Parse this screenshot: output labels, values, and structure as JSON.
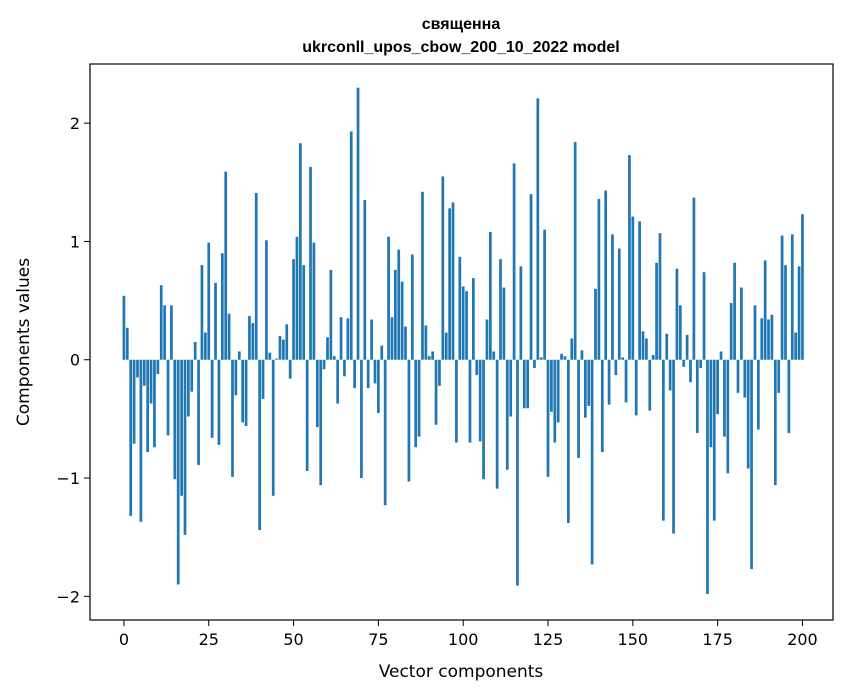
{
  "chart_data": {
    "type": "bar",
    "title_lines": [
      "священна",
      "ukrconll_upos_cbow_200_10_2022 model"
    ],
    "xlabel": "Vector components",
    "ylabel": "Components values",
    "xlim": [
      -10,
      209
    ],
    "ylim": [
      -2.2,
      2.5
    ],
    "xticks": [
      0,
      25,
      50,
      75,
      100,
      125,
      150,
      175,
      200
    ],
    "xtick_labels": [
      "0",
      "25",
      "50",
      "75",
      "100",
      "125",
      "150",
      "175",
      "200"
    ],
    "yticks": [
      -2,
      -1,
      0,
      1,
      2
    ],
    "ytick_labels": [
      "−2",
      "−1",
      "0",
      "1",
      "2"
    ],
    "bar_color": "#1f77b4",
    "grid": false,
    "values": [
      0.54,
      0.27,
      -1.32,
      -0.71,
      -0.15,
      -1.37,
      -0.22,
      -0.78,
      -0.37,
      -0.74,
      -0.12,
      0.63,
      0.46,
      -0.64,
      0.46,
      -1.01,
      -1.9,
      -1.15,
      -1.48,
      -0.48,
      -0.27,
      0.15,
      -0.89,
      0.8,
      0.23,
      0.99,
      -0.66,
      0.65,
      -0.72,
      0.9,
      1.59,
      0.39,
      -0.99,
      -0.3,
      0.07,
      -0.53,
      -0.56,
      0.37,
      0.31,
      1.41,
      -1.44,
      -0.33,
      1.01,
      0.06,
      -1.15,
      0.01,
      0.2,
      0.17,
      0.3,
      -0.16,
      0.85,
      1.04,
      1.83,
      0.8,
      -0.94,
      1.63,
      0.99,
      -0.57,
      -1.06,
      -0.08,
      0.19,
      0.76,
      0.03,
      -0.37,
      0.36,
      -0.14,
      0.35,
      1.93,
      -0.24,
      2.3,
      -1.0,
      1.35,
      -0.24,
      0.34,
      -0.2,
      -0.45,
      0.12,
      -1.23,
      1.04,
      0.36,
      0.76,
      0.93,
      0.66,
      0.28,
      -1.03,
      0.89,
      -0.74,
      -0.65,
      1.42,
      0.29,
      0.03,
      0.07,
      -0.55,
      -0.22,
      1.55,
      0.23,
      1.28,
      1.33,
      -0.7,
      0.87,
      0.62,
      0.58,
      -0.7,
      0.69,
      -0.13,
      -0.69,
      -1.01,
      0.34,
      1.08,
      0.07,
      -1.09,
      0.85,
      0.61,
      -0.93,
      -0.48,
      1.66,
      -1.91,
      0.79,
      -0.41,
      -0.41,
      1.4,
      -0.07,
      2.21,
      0.02,
      1.1,
      -0.99,
      -0.44,
      -0.7,
      -0.53,
      0.05,
      0.03,
      -1.38,
      0.18,
      1.84,
      -0.83,
      0.08,
      -0.49,
      -0.39,
      -1.73,
      0.6,
      1.36,
      -0.78,
      1.43,
      -0.38,
      1.06,
      -0.13,
      0.94,
      0.02,
      -0.36,
      1.73,
      1.21,
      -0.47,
      1.17,
      0.24,
      0.18,
      -0.43,
      0.04,
      0.82,
      1.07,
      -1.36,
      0.22,
      -0.26,
      -1.47,
      0.77,
      0.46,
      -0.06,
      0.21,
      -0.19,
      1.37,
      -0.62,
      -0.07,
      0.74,
      -1.98,
      -0.74,
      -1.36,
      -0.46,
      0.07,
      -0.65,
      -0.96,
      0.48,
      0.82,
      -0.28,
      0.61,
      -0.32,
      -0.92,
      -1.77,
      0.46,
      -0.59,
      0.35,
      0.84,
      0.34,
      0.38,
      -1.06,
      -0.28,
      1.05,
      0.8,
      -0.62,
      1.06,
      0.23,
      0.79,
      1.23
    ]
  }
}
